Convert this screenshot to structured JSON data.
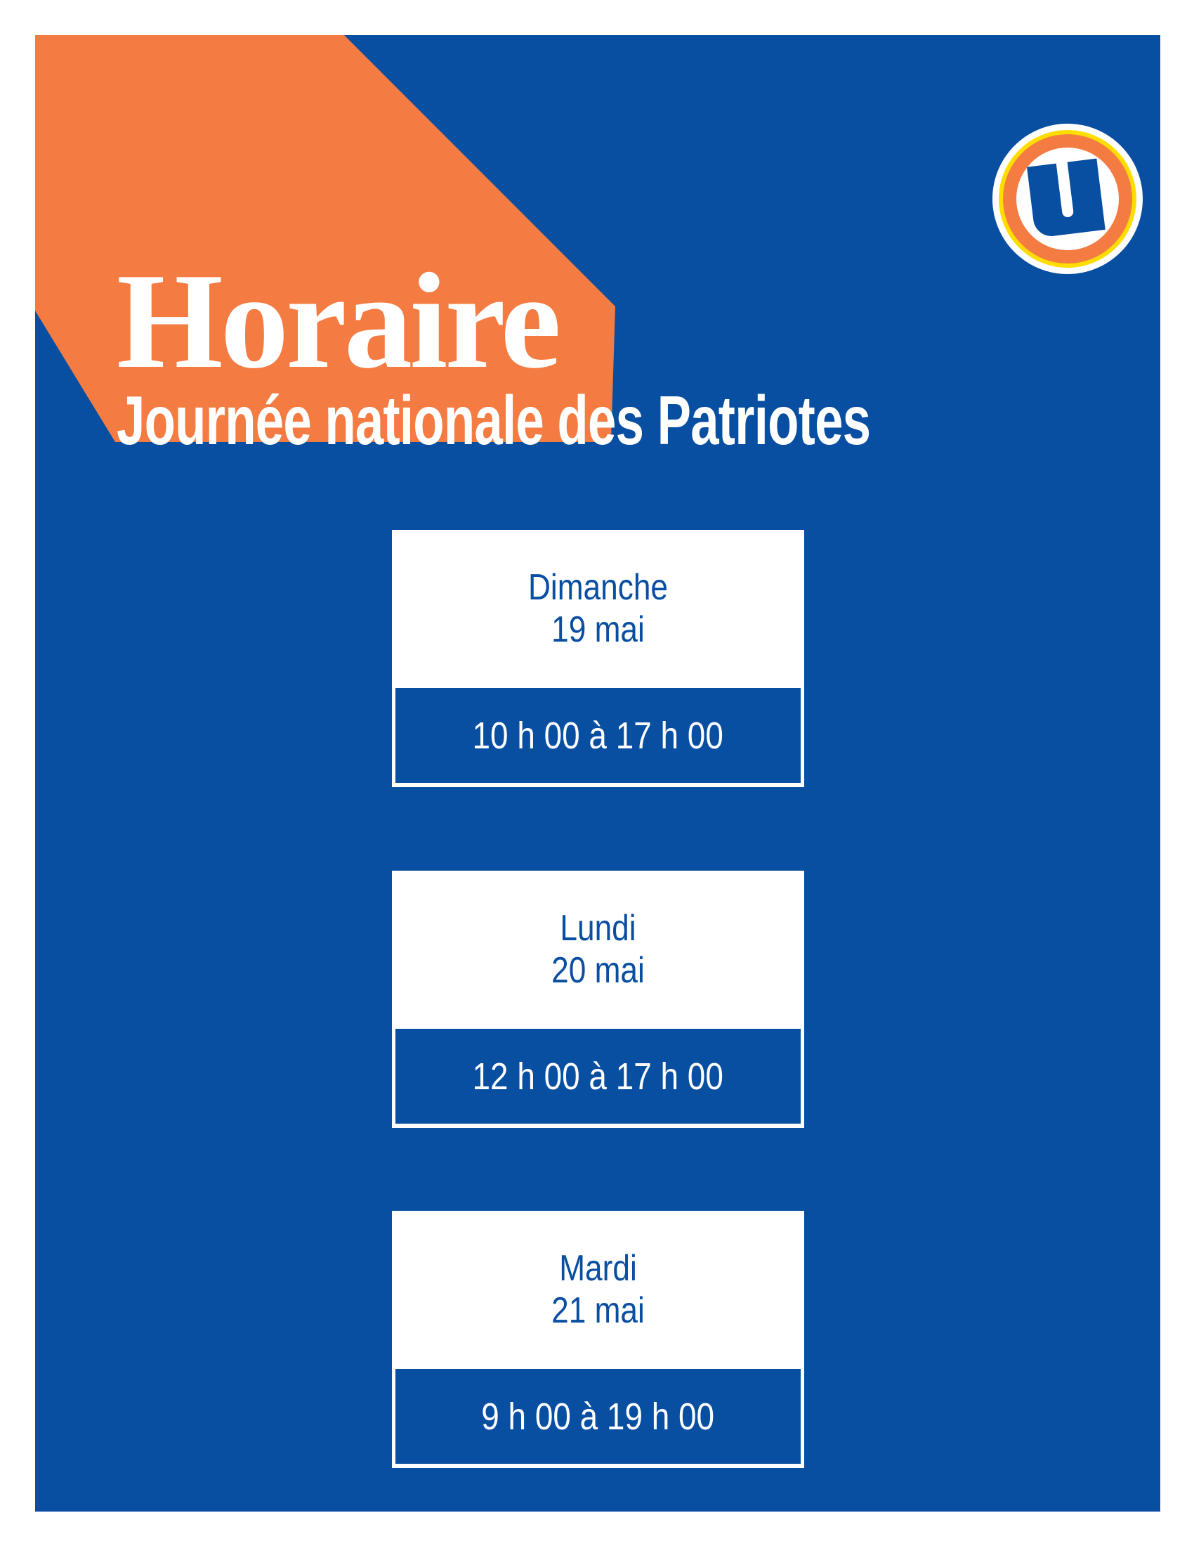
{
  "header": {
    "title": "Horaire",
    "subtitle": "Journée nationale des Patriotes"
  },
  "logo": {
    "name": "u-logo",
    "letter": "U"
  },
  "colors": {
    "background": "#084ea1",
    "accent": "#f47c42",
    "logo_ring": "#ffdd00",
    "card": "#ffffff"
  },
  "schedule": [
    {
      "day": "Dimanche",
      "date": "19 mai",
      "hours": "10 h 00 à 17 h 00"
    },
    {
      "day": "Lundi",
      "date": "20 mai",
      "hours": "12 h 00 à 17 h 00"
    },
    {
      "day": "Mardi",
      "date": "21 mai",
      "hours": "9 h 00 à 19 h 00"
    }
  ]
}
